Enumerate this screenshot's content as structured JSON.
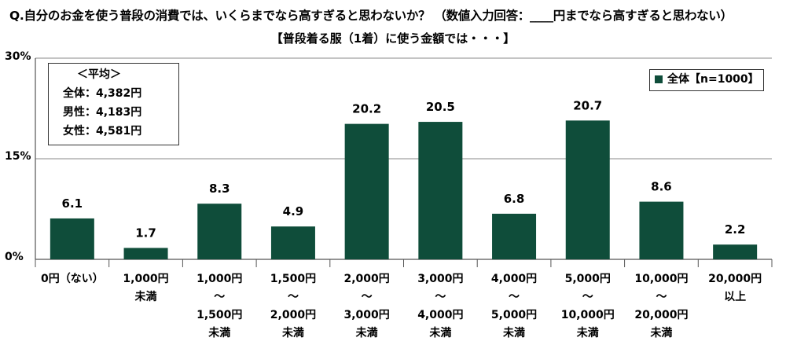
{
  "header": {
    "question": "Q.自分のお金を使う普段の消費では、いくらまでなら高すぎると思わないか？ （数値入力回答：____円までなら高すぎると思わない）",
    "subtitle": "【普段着る服（1着）に使う金額では・・・】"
  },
  "average_box": {
    "heading": "＜平均＞",
    "lines": [
      "全体：4,382円",
      "男性：4,183円",
      "女性：4,581円"
    ]
  },
  "legend": {
    "label": "全体【n=1000】"
  },
  "colors": {
    "bar": "#0f4d3a",
    "gridline": "#a0a0a0",
    "axis": "#555555"
  },
  "chart_data": {
    "type": "bar",
    "title": "【普段着る服（1着）に使う金額では・・・】",
    "xlabel": "",
    "ylabel": "",
    "ylim": [
      0,
      30
    ],
    "y_ticks": [
      "0%",
      "15%",
      "30%"
    ],
    "y_tick_values": [
      0,
      15,
      30
    ],
    "grid": true,
    "legend_position": "top-right",
    "categories": [
      [
        "0円（ない）"
      ],
      [
        "1,000円",
        "未満"
      ],
      [
        "1,000円",
        "～",
        "1,500円",
        "未満"
      ],
      [
        "1,500円",
        "～",
        "2,000円",
        "未満"
      ],
      [
        "2,000円",
        "～",
        "3,000円",
        "未満"
      ],
      [
        "3,000円",
        "～",
        "4,000円",
        "未満"
      ],
      [
        "4,000円",
        "～",
        "5,000円",
        "未満"
      ],
      [
        "5,000円",
        "～",
        "10,000円",
        "未満"
      ],
      [
        "10,000円",
        "～",
        "20,000円",
        "未満"
      ],
      [
        "20,000円",
        "以上"
      ]
    ],
    "series": [
      {
        "name": "全体【n=1000】",
        "values": [
          6.1,
          1.7,
          8.3,
          4.9,
          20.2,
          20.5,
          6.8,
          20.7,
          8.6,
          2.2
        ],
        "value_labels": [
          "6.1",
          "1.7",
          "8.3",
          "4.9",
          "20.2",
          "20.5",
          "6.8",
          "20.7",
          "8.6",
          "2.2"
        ]
      }
    ]
  }
}
